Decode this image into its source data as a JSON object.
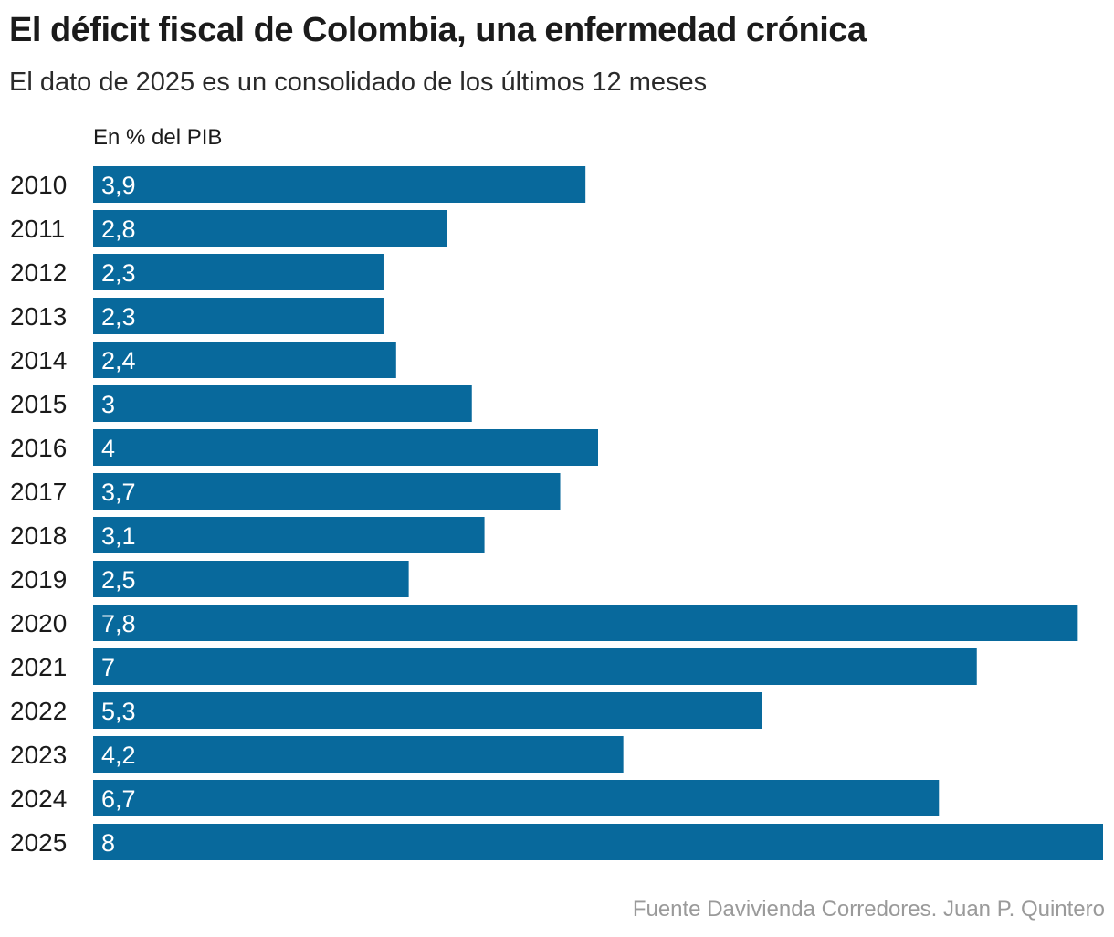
{
  "title": "El déficit fiscal de Colombia, una enfermedad crónica",
  "subtitle": "El dato de 2025 es un consolidado de los últimos 12 meses",
  "source": "Fuente Davivienda Corredores. Juan P. Quintero",
  "colors": {
    "bar": "#08699c",
    "bar_label": "#ffffff",
    "category_label": "#1a1a1a"
  },
  "chart_data": {
    "type": "bar",
    "orientation": "horizontal",
    "unit_label": "En % del PIB",
    "categories": [
      "2010",
      "2011",
      "2012",
      "2013",
      "2014",
      "2015",
      "2016",
      "2017",
      "2018",
      "2019",
      "2020",
      "2021",
      "2022",
      "2023",
      "2024",
      "2025"
    ],
    "values": [
      3.9,
      2.8,
      2.3,
      2.3,
      2.4,
      3,
      4,
      3.7,
      3.1,
      2.5,
      7.8,
      7,
      5.3,
      4.2,
      6.7,
      8
    ],
    "value_labels": [
      "3,9",
      "2,8",
      "2,3",
      "2,3",
      "2,4",
      "3",
      "4",
      "3,7",
      "3,1",
      "2,5",
      "7,8",
      "7",
      "5,3",
      "4,2",
      "6,7",
      "8"
    ],
    "xlim": [
      0,
      8
    ],
    "grid": false,
    "legend": "none"
  }
}
